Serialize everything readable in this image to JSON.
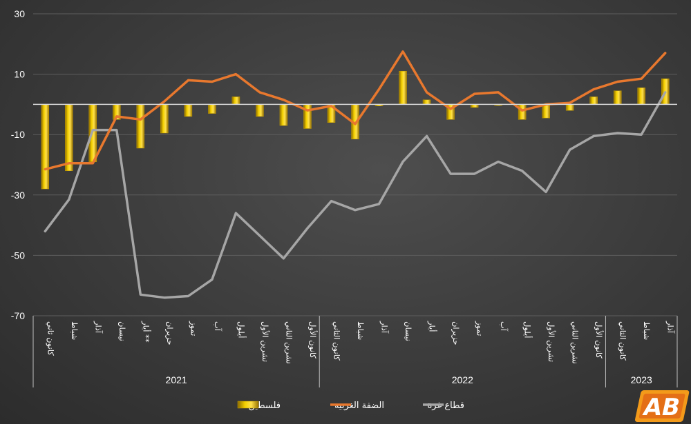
{
  "chart_data": {
    "type": "bar+line",
    "yticks": [
      "30",
      "10",
      "-10",
      "-30",
      "-50",
      "-70"
    ],
    "ylim": [
      -70,
      30
    ],
    "categories": [
      "كانون ثاني",
      "شباط",
      "آذار",
      "نيسان",
      "أيار **",
      "حزيران",
      "تموز",
      "آب",
      "أيلول",
      "تشرين الأول",
      "تشرين الثاني",
      "كانون الأول",
      "كانون الثاني",
      "شباط",
      "آذار",
      "نيسان",
      "أيار",
      "حزيران",
      "تموز",
      "آب",
      "أيلول",
      "تشرين الأول",
      "تشرين الثاني",
      "كانون الأول",
      "كانون الثاني",
      "شباط",
      "آذار"
    ],
    "years": [
      {
        "label": "2021",
        "count": 12
      },
      {
        "label": "2022",
        "count": 12
      },
      {
        "label": "2023",
        "count": 3
      }
    ],
    "series": [
      {
        "name": "فلسطين",
        "kind": "bar",
        "color": "#f2c200",
        "values": [
          -28,
          -22,
          -19,
          -5,
          -14.5,
          -9.5,
          -4,
          -3,
          2.5,
          -4,
          -7,
          -8,
          -6,
          -11.5,
          -0.5,
          11,
          1.5,
          -5,
          -1,
          0,
          -5,
          -4.5,
          -2,
          2.5,
          4.5,
          5.5,
          8.5
        ]
      },
      {
        "name": "الضفة الغربية",
        "kind": "line",
        "color": "#e8782e",
        "values": [
          -21.5,
          -19.5,
          -19.5,
          -4,
          -5,
          1,
          8,
          7.5,
          10,
          4,
          1.5,
          -2,
          -0.5,
          -6.5,
          5,
          17.5,
          4,
          -1.5,
          3.5,
          4,
          -2,
          0,
          0.5,
          5,
          7.5,
          8.5,
          17
        ]
      },
      {
        "name": "قطاع غزة",
        "kind": "line",
        "color": "#a6a6a6",
        "values": [
          -42,
          -31.5,
          -8.5,
          -8.5,
          -63,
          -64,
          -63.5,
          -58,
          -36,
          -43.5,
          -51,
          -41,
          -32,
          -35,
          -33,
          -19,
          -10.5,
          -23,
          -23,
          -19,
          -22,
          -29,
          -15,
          -10.5,
          -9.5,
          -10,
          4
        ]
      }
    ]
  },
  "legend": {
    "items": [
      {
        "label": "فلسطين",
        "color": "#f2c200"
      },
      {
        "label": "الضفة الغربية",
        "color": "#e8782e"
      },
      {
        "label": "قطاع غزة",
        "color": "#a6a6a6"
      }
    ]
  },
  "logo": {
    "text": "AB",
    "colors": [
      "#f7a21b",
      "#e8782e"
    ]
  }
}
